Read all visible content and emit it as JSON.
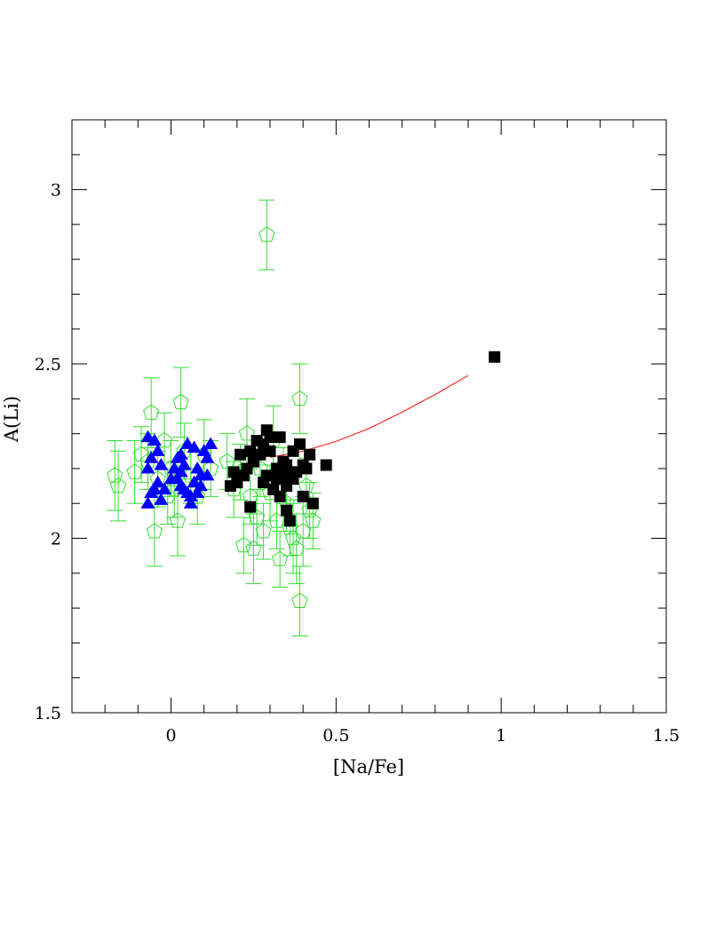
{
  "chart_data": {
    "type": "scatter",
    "title": "",
    "xlabel": "[Na/Fe]",
    "ylabel": "A(Li)",
    "xlim": [
      -0.3,
      1.5
    ],
    "ylim": [
      1.5,
      3.2
    ],
    "x_ticks": [
      {
        "value": 0,
        "label": "0"
      },
      {
        "value": 0.5,
        "label": "0.5"
      },
      {
        "value": 1,
        "label": "1"
      },
      {
        "value": 1.5,
        "label": "1.5"
      }
    ],
    "y_ticks": [
      {
        "value": 1.5,
        "label": "1.5"
      },
      {
        "value": 2,
        "label": "2"
      },
      {
        "value": 2.5,
        "label": "2.5"
      },
      {
        "value": 3,
        "label": "3"
      }
    ],
    "x_minor_step": 0.1,
    "y_minor_step": 0.1,
    "grid": false,
    "colors": {
      "open_pentagons": "#33dd33",
      "triangles": "#0000ff",
      "squares": "#000000",
      "curve": "#ff0000",
      "axes": "#000000"
    },
    "series": [
      {
        "marker": "open-pentagon",
        "with_error_bars": true,
        "points": [
          {
            "x": -0.17,
            "y": 2.18,
            "err": 0.1
          },
          {
            "x": -0.16,
            "y": 2.15,
            "err": 0.1
          },
          {
            "x": -0.11,
            "y": 2.19,
            "err": 0.09
          },
          {
            "x": -0.09,
            "y": 2.24,
            "err": 0.08
          },
          {
            "x": -0.07,
            "y": 2.22,
            "err": 0.08
          },
          {
            "x": -0.06,
            "y": 2.36,
            "err": 0.1
          },
          {
            "x": -0.05,
            "y": 2.02,
            "err": 0.1
          },
          {
            "x": -0.04,
            "y": 2.17,
            "err": 0.08
          },
          {
            "x": -0.02,
            "y": 2.28,
            "err": 0.08
          },
          {
            "x": -0.01,
            "y": 2.12,
            "err": 0.08
          },
          {
            "x": 0.0,
            "y": 2.2,
            "err": 0.08
          },
          {
            "x": 0.01,
            "y": 2.14,
            "err": 0.08
          },
          {
            "x": 0.02,
            "y": 2.05,
            "err": 0.1
          },
          {
            "x": 0.03,
            "y": 2.39,
            "err": 0.1
          },
          {
            "x": 0.04,
            "y": 2.25,
            "err": 0.08
          },
          {
            "x": 0.06,
            "y": 2.18,
            "err": 0.08
          },
          {
            "x": 0.08,
            "y": 2.12,
            "err": 0.08
          },
          {
            "x": 0.1,
            "y": 2.24,
            "err": 0.1
          },
          {
            "x": 0.12,
            "y": 2.2,
            "err": 0.08
          },
          {
            "x": 0.17,
            "y": 2.22,
            "err": 0.08
          },
          {
            "x": 0.19,
            "y": 2.14,
            "err": 0.08
          },
          {
            "x": 0.21,
            "y": 2.19,
            "err": 0.08
          },
          {
            "x": 0.22,
            "y": 1.98,
            "err": 0.08
          },
          {
            "x": 0.23,
            "y": 2.3,
            "err": 0.1
          },
          {
            "x": 0.24,
            "y": 2.12,
            "err": 0.08
          },
          {
            "x": 0.25,
            "y": 1.97,
            "err": 0.1
          },
          {
            "x": 0.26,
            "y": 2.06,
            "err": 0.08
          },
          {
            "x": 0.27,
            "y": 2.2,
            "err": 0.08
          },
          {
            "x": 0.28,
            "y": 2.02,
            "err": 0.08
          },
          {
            "x": 0.29,
            "y": 2.87,
            "err": 0.1
          },
          {
            "x": 0.3,
            "y": 2.13,
            "err": 0.08
          },
          {
            "x": 0.31,
            "y": 2.28,
            "err": 0.1
          },
          {
            "x": 0.32,
            "y": 2.05,
            "err": 0.08
          },
          {
            "x": 0.33,
            "y": 1.94,
            "err": 0.08
          },
          {
            "x": 0.34,
            "y": 2.18,
            "err": 0.08
          },
          {
            "x": 0.35,
            "y": 2.1,
            "err": 0.08
          },
          {
            "x": 0.36,
            "y": 2.03,
            "err": 0.08
          },
          {
            "x": 0.37,
            "y": 2.0,
            "err": 0.1
          },
          {
            "x": 0.38,
            "y": 1.97,
            "err": 0.1
          },
          {
            "x": 0.39,
            "y": 1.82,
            "err": 0.1
          },
          {
            "x": 0.39,
            "y": 2.4,
            "err": 0.1
          },
          {
            "x": 0.4,
            "y": 2.02,
            "err": 0.1
          },
          {
            "x": 0.41,
            "y": 2.15,
            "err": 0.08
          },
          {
            "x": 0.42,
            "y": 2.08,
            "err": 0.08
          },
          {
            "x": 0.43,
            "y": 2.05,
            "err": 0.08
          }
        ]
      },
      {
        "marker": "filled-triangle",
        "points": [
          {
            "x": -0.07,
            "y": 2.29
          },
          {
            "x": -0.05,
            "y": 2.28
          },
          {
            "x": -0.04,
            "y": 2.25
          },
          {
            "x": -0.06,
            "y": 2.23
          },
          {
            "x": -0.03,
            "y": 2.21
          },
          {
            "x": -0.07,
            "y": 2.2
          },
          {
            "x": -0.04,
            "y": 2.16
          },
          {
            "x": -0.06,
            "y": 2.13
          },
          {
            "x": -0.07,
            "y": 2.1
          },
          {
            "x": -0.03,
            "y": 2.11
          },
          {
            "x": -0.02,
            "y": 2.14
          },
          {
            "x": -0.05,
            "y": 2.14
          },
          {
            "x": 0.01,
            "y": 2.2
          },
          {
            "x": 0.02,
            "y": 2.23
          },
          {
            "x": 0.03,
            "y": 2.24
          },
          {
            "x": 0.05,
            "y": 2.27
          },
          {
            "x": 0.04,
            "y": 2.21
          },
          {
            "x": 0.03,
            "y": 2.19
          },
          {
            "x": 0.02,
            "y": 2.17
          },
          {
            "x": 0.03,
            "y": 2.15
          },
          {
            "x": 0.05,
            "y": 2.13
          },
          {
            "x": 0.06,
            "y": 2.12
          },
          {
            "x": 0.06,
            "y": 2.1
          },
          {
            "x": 0.07,
            "y": 2.16
          },
          {
            "x": 0.08,
            "y": 2.2
          },
          {
            "x": 0.07,
            "y": 2.26
          },
          {
            "x": 0.09,
            "y": 2.18
          },
          {
            "x": 0.1,
            "y": 2.25
          },
          {
            "x": 0.11,
            "y": 2.18
          },
          {
            "x": 0.12,
            "y": 2.27
          },
          {
            "x": 0.11,
            "y": 2.23
          },
          {
            "x": 0.09,
            "y": 2.15
          },
          {
            "x": 0.04,
            "y": 2.14
          },
          {
            "x": 0.0,
            "y": 2.17
          },
          {
            "x": 0.08,
            "y": 2.13
          }
        ]
      },
      {
        "marker": "filled-square",
        "points": [
          {
            "x": 0.18,
            "y": 2.15
          },
          {
            "x": 0.19,
            "y": 2.19
          },
          {
            "x": 0.2,
            "y": 2.16
          },
          {
            "x": 0.22,
            "y": 2.18
          },
          {
            "x": 0.21,
            "y": 2.24
          },
          {
            "x": 0.23,
            "y": 2.2
          },
          {
            "x": 0.24,
            "y": 2.09
          },
          {
            "x": 0.24,
            "y": 2.25
          },
          {
            "x": 0.25,
            "y": 2.22
          },
          {
            "x": 0.26,
            "y": 2.28
          },
          {
            "x": 0.27,
            "y": 2.24
          },
          {
            "x": 0.28,
            "y": 2.27
          },
          {
            "x": 0.29,
            "y": 2.31
          },
          {
            "x": 0.28,
            "y": 2.16
          },
          {
            "x": 0.29,
            "y": 2.18
          },
          {
            "x": 0.3,
            "y": 2.25
          },
          {
            "x": 0.3,
            "y": 2.29
          },
          {
            "x": 0.31,
            "y": 2.14
          },
          {
            "x": 0.32,
            "y": 2.2
          },
          {
            "x": 0.32,
            "y": 2.17
          },
          {
            "x": 0.33,
            "y": 2.29
          },
          {
            "x": 0.33,
            "y": 2.12
          },
          {
            "x": 0.34,
            "y": 2.22
          },
          {
            "x": 0.34,
            "y": 2.18
          },
          {
            "x": 0.35,
            "y": 2.08
          },
          {
            "x": 0.35,
            "y": 2.15
          },
          {
            "x": 0.35,
            "y": 2.21
          },
          {
            "x": 0.36,
            "y": 2.05
          },
          {
            "x": 0.36,
            "y": 2.19
          },
          {
            "x": 0.37,
            "y": 2.25
          },
          {
            "x": 0.37,
            "y": 2.17
          },
          {
            "x": 0.38,
            "y": 2.19
          },
          {
            "x": 0.39,
            "y": 2.27
          },
          {
            "x": 0.4,
            "y": 2.21
          },
          {
            "x": 0.4,
            "y": 2.12
          },
          {
            "x": 0.41,
            "y": 2.2
          },
          {
            "x": 0.42,
            "y": 2.24
          },
          {
            "x": 0.43,
            "y": 2.1
          },
          {
            "x": 0.47,
            "y": 2.21
          },
          {
            "x": 0.98,
            "y": 2.52
          }
        ]
      }
    ],
    "curve": [
      {
        "x": 0.3,
        "y": 2.232
      },
      {
        "x": 0.4,
        "y": 2.25
      },
      {
        "x": 0.5,
        "y": 2.278
      },
      {
        "x": 0.6,
        "y": 2.315
      },
      {
        "x": 0.7,
        "y": 2.362
      },
      {
        "x": 0.8,
        "y": 2.412
      },
      {
        "x": 0.9,
        "y": 2.467
      }
    ]
  }
}
